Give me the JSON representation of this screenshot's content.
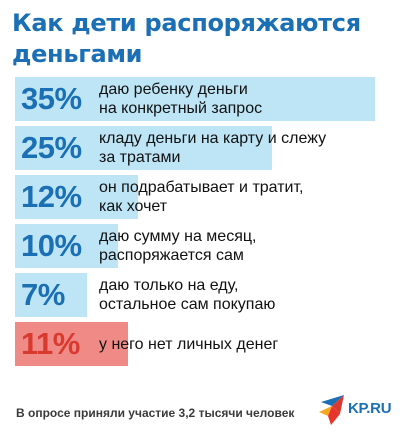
{
  "header": {
    "title": "Как дети распоряжаются деньгами"
  },
  "chart_data": {
    "type": "bar",
    "orientation": "horizontal",
    "categories": [
      "даю ребенку деньги на конкретный запрос",
      "кладу деньги на карту и слежу за тратами",
      "он подрабатывает и тратит, как хочет",
      "даю сумму на месяц, распоряжается сам",
      "даю только на еду, остальное сам покупаю",
      "у него нет личных денег"
    ],
    "values": [
      35,
      25,
      12,
      10,
      7,
      11
    ],
    "value_labels": [
      "35%",
      "25%",
      "12%",
      "10%",
      "7%",
      "11%"
    ],
    "xlim": [
      0,
      35
    ],
    "grid": false,
    "colors": {
      "bar": "#bde5f5",
      "bar_highlight": "#f08a86",
      "value_text": "#1a6fb5",
      "value_text_highlight": "#d93a2f"
    },
    "highlight_index": 5
  },
  "footer": {
    "note": "В опросе приняли участие 3,2 тысячи человек"
  },
  "logo": {
    "text": "KP.RU",
    "icon": "kp-star-logo-icon"
  }
}
